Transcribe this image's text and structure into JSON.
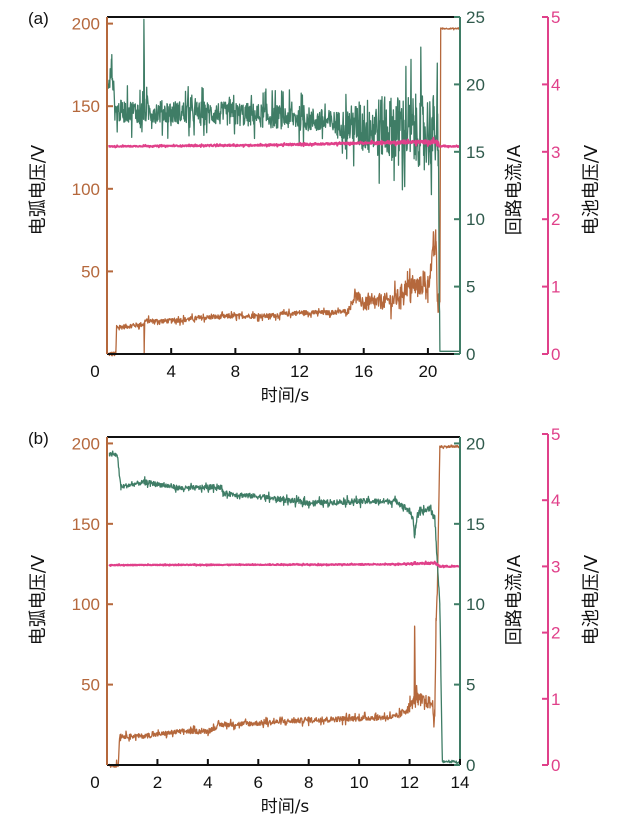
{
  "colors": {
    "arc_voltage": "#b5683c",
    "loop_current": "#3f7d66",
    "battery_voltage": "#e0408a",
    "frame": "#111111",
    "current_tick": "#2f5a4c"
  },
  "chart_data": [
    {
      "type": "line",
      "panel_label": "(a)",
      "xlabel": "时间/s",
      "xlim": [
        0,
        22
      ],
      "xticks": [
        "0",
        "4",
        "8",
        "12",
        "16",
        "20"
      ],
      "axes": {
        "left": {
          "label": "电弧电压/V",
          "ylim": [
            0,
            204
          ],
          "ticks": [
            "50",
            "100",
            "150",
            "200"
          ]
        },
        "right": {
          "label": "回路电流/A",
          "ylim": [
            0,
            25
          ],
          "ticks": [
            "0",
            "5",
            "10",
            "15",
            "20",
            "25"
          ]
        },
        "far_right": {
          "label": "电池电压/V",
          "ylim": [
            0,
            5
          ],
          "ticks": [
            "0",
            "1",
            "2",
            "3",
            "4",
            "5"
          ]
        }
      },
      "series": [
        {
          "key": "arc_voltage",
          "axis": "left",
          "points": [
            [
              0.1,
              0
            ],
            [
              0.55,
              0
            ],
            [
              0.6,
              16
            ],
            [
              2.3,
              18
            ],
            [
              2.32,
              2
            ],
            [
              2.35,
              20
            ],
            [
              4,
              20
            ],
            [
              6,
              22
            ],
            [
              8,
              23
            ],
            [
              10,
              23
            ],
            [
              12,
              25
            ],
            [
              14,
              25
            ],
            [
              15,
              26
            ],
            [
              15.5,
              36
            ],
            [
              16,
              30
            ],
            [
              18,
              33
            ],
            [
              18.6,
              40
            ],
            [
              20,
              42
            ],
            [
              20.5,
              70
            ],
            [
              20.6,
              30
            ],
            [
              20.75,
              30
            ],
            [
              20.8,
              197
            ],
            [
              22,
              197
            ]
          ],
          "noise": [
            [
              0.6,
              2
            ],
            [
              15,
              2
            ],
            [
              16,
              6
            ],
            [
              20.7,
              9
            ],
            [
              20.8,
              0.5
            ],
            [
              22,
              0.5
            ]
          ]
        },
        {
          "key": "loop_current",
          "axis": "right",
          "points": [
            [
              0.1,
              19.5
            ],
            [
              0.3,
              21.5
            ],
            [
              0.5,
              18
            ],
            [
              2.28,
              18
            ],
            [
              2.3,
              25
            ],
            [
              2.34,
              18
            ],
            [
              8,
              17.8
            ],
            [
              12,
              17.5
            ],
            [
              15,
              17
            ],
            [
              20.6,
              16.5
            ],
            [
              20.75,
              0.2
            ],
            [
              22,
              0.2
            ]
          ],
          "noise": [
            [
              0.1,
              1.2
            ],
            [
              14.5,
              1.3
            ],
            [
              16,
              3
            ],
            [
              20,
              4
            ],
            [
              20.7,
              4
            ],
            [
              20.75,
              0
            ],
            [
              22,
              0
            ]
          ]
        },
        {
          "key": "battery_voltage",
          "axis": "far_right",
          "points": [
            [
              0.1,
              3.08
            ],
            [
              10,
              3.1
            ],
            [
              16,
              3.13
            ],
            [
              20.6,
              3.15
            ],
            [
              20.7,
              3.08
            ],
            [
              22,
              3.08
            ]
          ],
          "noise": [
            [
              0.1,
              0.01
            ],
            [
              16,
              0.02
            ],
            [
              20.6,
              0.04
            ],
            [
              20.7,
              0.01
            ],
            [
              22,
              0.01
            ]
          ]
        }
      ]
    },
    {
      "type": "line",
      "panel_label": "(b)",
      "xlabel": "时间/s",
      "xlim": [
        0,
        14
      ],
      "xticks": [
        "0",
        "2",
        "4",
        "6",
        "8",
        "10",
        "12",
        "14"
      ],
      "axes": {
        "left": {
          "label": "电弧电压/V",
          "ylim": [
            0,
            204
          ],
          "ticks": [
            "50",
            "100",
            "150",
            "200"
          ]
        },
        "right": {
          "label": "回路电流/A",
          "ylim": [
            0,
            20.4
          ],
          "ticks": [
            "0",
            "5",
            "10",
            "15",
            "20"
          ]
        },
        "far_right": {
          "label": "电池电压/V",
          "ylim": [
            0,
            5
          ],
          "ticks": [
            "0",
            "1",
            "2",
            "3",
            "4",
            "5"
          ]
        }
      },
      "series": [
        {
          "key": "arc_voltage",
          "axis": "left",
          "points": [
            [
              0.1,
              0
            ],
            [
              0.45,
              0
            ],
            [
              0.5,
              18
            ],
            [
              1.5,
              18
            ],
            [
              3,
              21
            ],
            [
              4,
              21
            ],
            [
              4.5,
              25
            ],
            [
              6,
              26
            ],
            [
              8,
              28
            ],
            [
              10,
              29
            ],
            [
              11.5,
              30
            ],
            [
              12,
              36
            ],
            [
              12.18,
              40
            ],
            [
              12.2,
              86
            ],
            [
              12.23,
              42
            ],
            [
              12.9,
              38
            ],
            [
              13.0,
              30
            ],
            [
              13.05,
              88
            ],
            [
              13.1,
              108
            ],
            [
              13.2,
              198
            ],
            [
              14,
              198
            ]
          ],
          "noise": [
            [
              0.5,
              2
            ],
            [
              11.5,
              2.5
            ],
            [
              12.1,
              5
            ],
            [
              13,
              6
            ],
            [
              13.2,
              1
            ],
            [
              14,
              1
            ]
          ]
        },
        {
          "key": "loop_current",
          "axis": "right",
          "points": [
            [
              0.1,
              19.3
            ],
            [
              0.4,
              19.3
            ],
            [
              0.55,
              17.3
            ],
            [
              1.5,
              17.6
            ],
            [
              3,
              17.2
            ],
            [
              4.5,
              17.3
            ],
            [
              4.6,
              16.9
            ],
            [
              6,
              16.7
            ],
            [
              8,
              16.3
            ],
            [
              10,
              16.4
            ],
            [
              11.5,
              16.4
            ],
            [
              12.0,
              15.8
            ],
            [
              12.15,
              15.2
            ],
            [
              12.2,
              14.2
            ],
            [
              12.3,
              15.5
            ],
            [
              12.8,
              16
            ],
            [
              13.0,
              15.3
            ],
            [
              13.2,
              10
            ],
            [
              13.3,
              0.2
            ],
            [
              14,
              0.2
            ]
          ],
          "noise": [
            [
              0.1,
              0.2
            ],
            [
              11.5,
              0.25
            ],
            [
              13,
              0.3
            ],
            [
              13.3,
              0.1
            ],
            [
              14,
              0.1
            ]
          ]
        },
        {
          "key": "battery_voltage",
          "axis": "far_right",
          "points": [
            [
              0.1,
              3.02
            ],
            [
              11,
              3.03
            ],
            [
              13,
              3.05
            ],
            [
              13.2,
              3.0
            ],
            [
              14,
              3.0
            ]
          ],
          "noise": [
            [
              0.1,
              0.008
            ],
            [
              11,
              0.01
            ],
            [
              13,
              0.02
            ],
            [
              14,
              0.01
            ]
          ]
        }
      ]
    }
  ]
}
